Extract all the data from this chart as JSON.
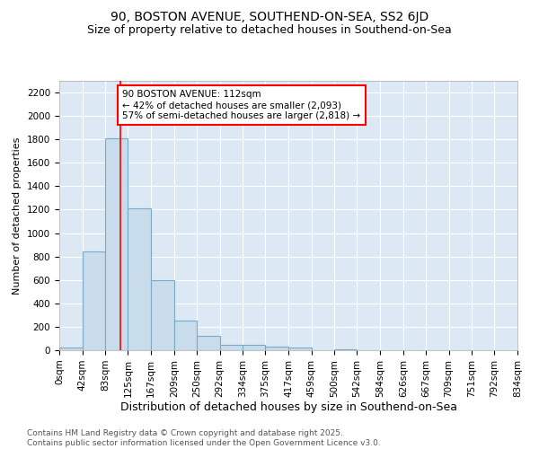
{
  "title1": "90, BOSTON AVENUE, SOUTHEND-ON-SEA, SS2 6JD",
  "title2": "Size of property relative to detached houses in Southend-on-Sea",
  "xlabel": "Distribution of detached houses by size in Southend-on-Sea",
  "ylabel": "Number of detached properties",
  "footer": "Contains HM Land Registry data © Crown copyright and database right 2025.\nContains public sector information licensed under the Open Government Licence v3.0.",
  "bar_edges": [
    0,
    42,
    83,
    125,
    167,
    209,
    250,
    292,
    334,
    375,
    417,
    459,
    500,
    542,
    584,
    626,
    667,
    709,
    751,
    792,
    834
  ],
  "bar_heights": [
    20,
    840,
    1810,
    1210,
    600,
    255,
    120,
    45,
    45,
    30,
    20,
    0,
    10,
    0,
    0,
    0,
    0,
    0,
    0,
    0
  ],
  "bar_color": "#c8dcec",
  "bar_edgecolor": "#7aaac8",
  "vline_x": 112,
  "vline_color": "red",
  "annotation_text": "90 BOSTON AVENUE: 112sqm\n← 42% of detached houses are smaller (2,093)\n57% of semi-detached houses are larger (2,818) →",
  "annotation_box_edgecolor": "red",
  "ylim": [
    0,
    2300
  ],
  "yticks": [
    0,
    200,
    400,
    600,
    800,
    1000,
    1200,
    1400,
    1600,
    1800,
    2000,
    2200
  ],
  "fig_background": "#ffffff",
  "plot_background": "#dce8f4",
  "title1_fontsize": 10,
  "title2_fontsize": 9,
  "xlabel_fontsize": 9,
  "ylabel_fontsize": 8,
  "tick_fontsize": 7.5,
  "annotation_fontsize": 7.5,
  "footer_fontsize": 6.5
}
